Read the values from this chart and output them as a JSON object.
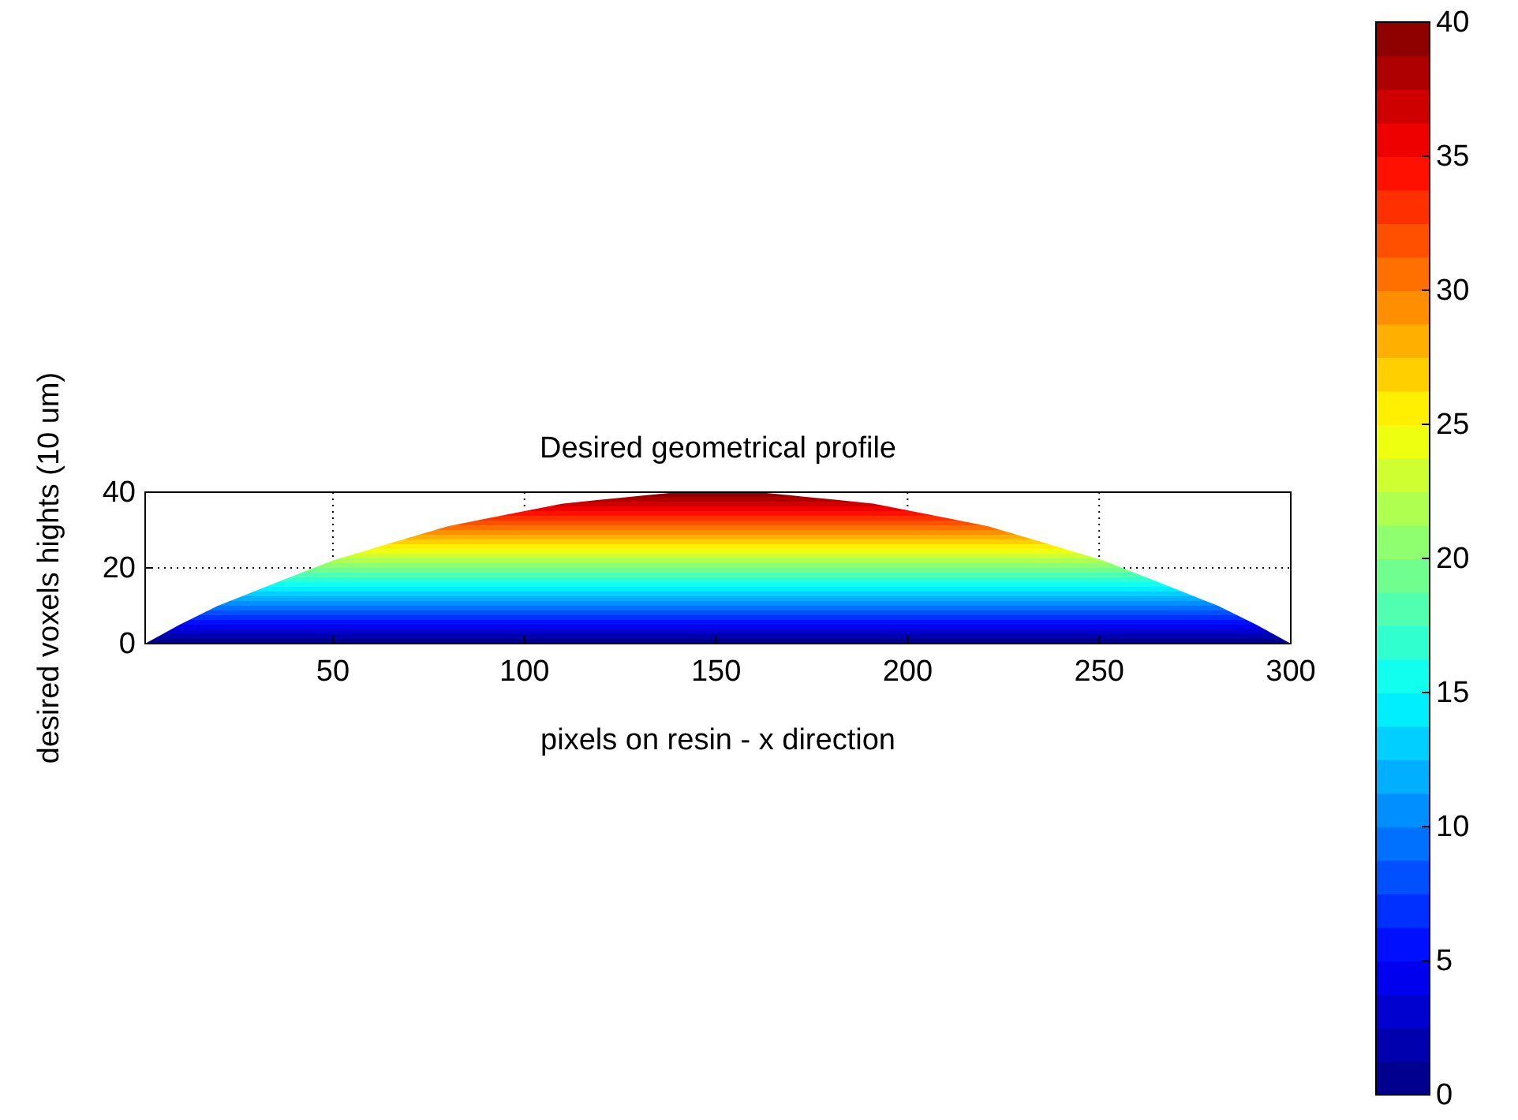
{
  "chart_data": {
    "type": "area",
    "title": "Desired geometrical profile",
    "xlabel": "pixels on resin - x direction",
    "ylabel": "desired voxels hights (10 um)",
    "x": [
      1,
      10,
      20,
      30,
      40,
      50,
      60,
      70,
      80,
      90,
      100,
      110,
      120,
      130,
      140,
      150,
      151,
      161,
      171,
      181,
      191,
      201,
      211,
      221,
      231,
      241,
      251,
      261,
      271,
      281,
      291,
      300
    ],
    "values": [
      0,
      5,
      10,
      14,
      18,
      22,
      25,
      28,
      31,
      33,
      35,
      37,
      38,
      39,
      40,
      40,
      40,
      40,
      39,
      38,
      37,
      35,
      33,
      31,
      28,
      25,
      22,
      18,
      14,
      10,
      5,
      0
    ],
    "xlim": [
      1,
      300
    ],
    "xticks": [
      50,
      100,
      150,
      200,
      250,
      300
    ],
    "ylim": [
      0,
      40
    ],
    "yticks": [
      0,
      20,
      40
    ],
    "grid": true,
    "clim": [
      0,
      40
    ],
    "cticks": [
      0,
      5,
      10,
      15,
      20,
      25,
      30,
      35,
      40
    ]
  }
}
